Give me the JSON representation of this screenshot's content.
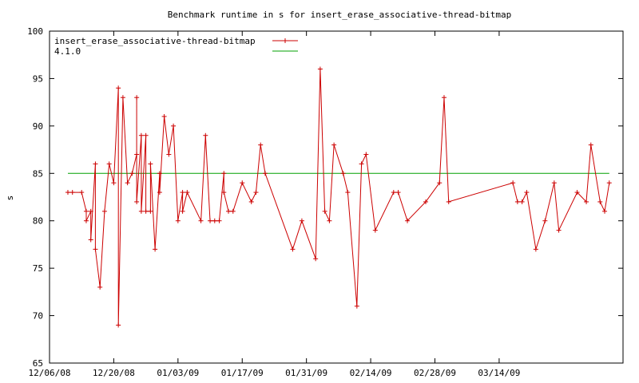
{
  "chart_data": {
    "type": "line",
    "title": "Benchmark runtime in s for insert_erase_associative-thread-bitmap",
    "xlabel": "",
    "ylabel": "s",
    "ylim": [
      65,
      100
    ],
    "xlim": [
      "2008-12-06",
      "2009-04-10"
    ],
    "y_ticks": [
      65,
      70,
      75,
      80,
      85,
      90,
      95,
      100
    ],
    "x_ticks": [
      {
        "date": "2008-12-06",
        "label": "12/06/08"
      },
      {
        "date": "2008-12-20",
        "label": "12/20/08"
      },
      {
        "date": "2009-01-03",
        "label": "01/03/09"
      },
      {
        "date": "2009-01-17",
        "label": "01/17/09"
      },
      {
        "date": "2009-01-31",
        "label": "01/31/09"
      },
      {
        "date": "2009-02-14",
        "label": "02/14/09"
      },
      {
        "date": "2009-02-28",
        "label": "02/28/09"
      },
      {
        "date": "2009-03-14",
        "label": "03/14/09"
      }
    ],
    "grid": false,
    "legend_position": "top-left",
    "series": [
      {
        "name": "insert_erase_associative-thread-bitmap",
        "color": "#cc0000",
        "marker": "plus",
        "x": [
          "2008-12-10",
          "2008-12-11",
          "2008-12-13",
          "2008-12-14",
          "2008-12-14",
          "2008-12-15",
          "2008-12-15",
          "2008-12-16",
          "2008-12-16",
          "2008-12-17",
          "2008-12-18",
          "2008-12-19",
          "2008-12-20",
          "2008-12-21",
          "2008-12-21",
          "2008-12-22",
          "2008-12-23",
          "2008-12-24",
          "2008-12-25",
          "2008-12-25",
          "2008-12-25",
          "2008-12-26",
          "2008-12-26",
          "2008-12-27",
          "2008-12-27",
          "2008-12-28",
          "2008-12-28",
          "2008-12-29",
          "2008-12-30",
          "2008-12-30",
          "2008-12-31",
          "2009-01-01",
          "2009-01-02",
          "2009-01-03",
          "2009-01-04",
          "2009-01-04",
          "2009-01-05",
          "2009-01-08",
          "2009-01-09",
          "2009-01-10",
          "2009-01-11",
          "2009-01-12",
          "2009-01-13",
          "2009-01-13",
          "2009-01-14",
          "2009-01-15",
          "2009-01-17",
          "2009-01-19",
          "2009-01-20",
          "2009-01-21",
          "2009-01-22",
          "2009-01-28",
          "2009-01-30",
          "2009-02-02",
          "2009-02-03",
          "2009-02-04",
          "2009-02-05",
          "2009-02-06",
          "2009-02-08",
          "2009-02-09",
          "2009-02-11",
          "2009-02-12",
          "2009-02-13",
          "2009-02-15",
          "2009-02-19",
          "2009-02-20",
          "2009-02-22",
          "2009-02-26",
          "2009-02-29",
          "2009-03-02",
          "2009-03-03",
          "2009-03-17",
          "2009-03-18",
          "2009-03-19",
          "2009-03-20",
          "2009-03-22",
          "2009-03-24",
          "2009-03-26",
          "2009-03-27",
          "2009-03-31",
          "2009-04-02",
          "2009-04-03",
          "2009-04-05",
          "2009-04-06",
          "2009-04-07"
        ],
        "y": [
          83,
          83,
          83,
          81,
          80,
          81,
          78,
          86,
          77,
          73,
          81,
          86,
          84,
          94,
          69,
          93,
          84,
          85,
          87,
          93,
          82,
          89,
          81,
          89,
          81,
          81,
          86,
          77,
          85,
          83,
          91,
          87,
          90,
          80,
          83,
          81,
          83,
          80,
          89,
          80,
          80,
          80,
          85,
          83,
          81,
          81,
          84,
          82,
          83,
          88,
          85,
          77,
          80,
          76,
          96,
          81,
          80,
          88,
          85,
          83,
          71,
          86,
          87,
          79,
          83,
          83,
          80,
          82,
          84,
          93,
          82,
          84,
          82,
          82,
          83,
          77,
          80,
          84,
          79,
          83,
          82,
          88,
          82,
          81,
          84
        ]
      },
      {
        "name": "4.1.0",
        "color": "#00a000",
        "marker": "none",
        "x": [
          "2008-12-10",
          "2009-04-07"
        ],
        "y": [
          85,
          85
        ]
      }
    ]
  }
}
